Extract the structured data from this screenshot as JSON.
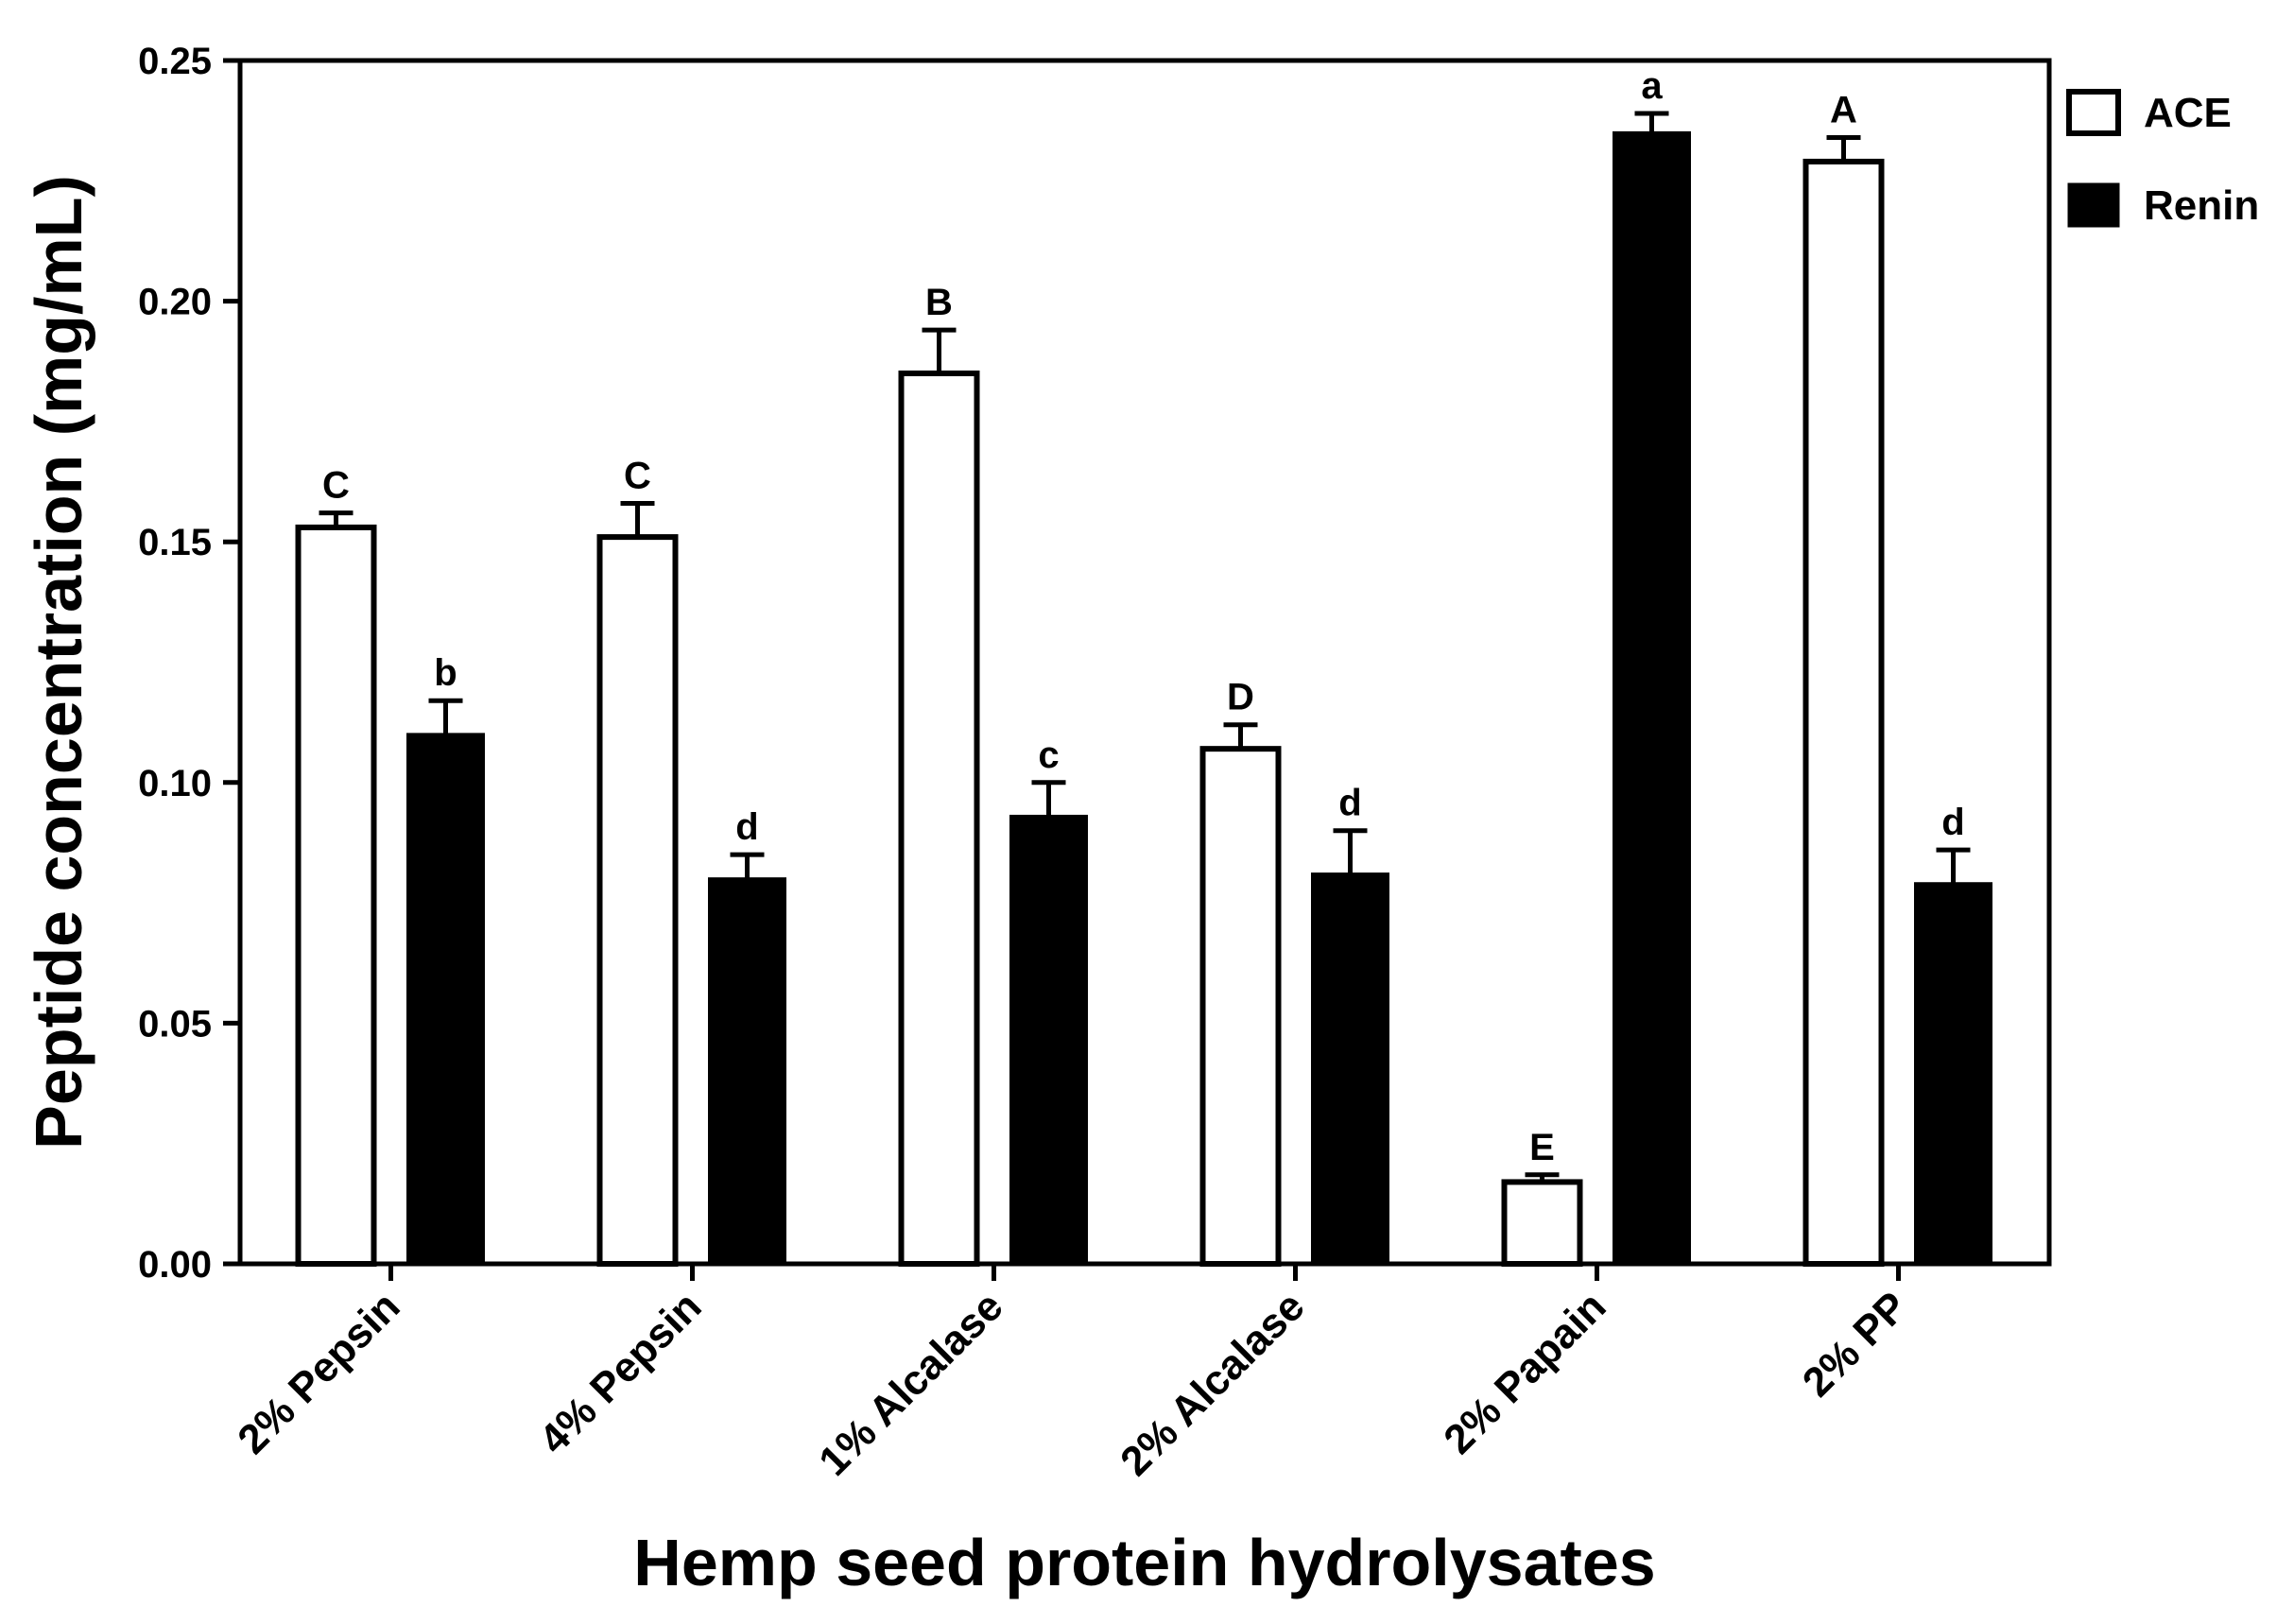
{
  "chart_data": {
    "type": "bar",
    "xlabel": "Hemp seed protein hydrolysates",
    "ylabel": "Peptide concentration (mg/mL)",
    "ylim": [
      0,
      0.25
    ],
    "yticks": [
      "0.00",
      "0.05",
      "0.10",
      "0.15",
      "0.20",
      "0.25"
    ],
    "ytick_values": [
      0,
      0.05,
      0.1,
      0.15,
      0.2,
      0.25
    ],
    "categories": [
      "2% Pepsin",
      "4% Pepsin",
      "1% Alcalase",
      "2% Alcalase",
      "2% Papain",
      "2% PP"
    ],
    "series": [
      {
        "name": "ACE",
        "color": "#ffffff",
        "values": [
          0.153,
          0.151,
          0.185,
          0.107,
          0.017,
          0.229
        ],
        "errors": [
          0.003,
          0.007,
          0.009,
          0.005,
          0.0015,
          0.005
        ],
        "labels": [
          "C",
          "C",
          "B",
          "D",
          "E",
          "A"
        ]
      },
      {
        "name": "Renin",
        "color": "#000000",
        "values": [
          0.11,
          0.08,
          0.093,
          0.081,
          0.235,
          0.079
        ],
        "errors": [
          0.007,
          0.005,
          0.007,
          0.009,
          0.004,
          0.007
        ],
        "labels": [
          "b",
          "d",
          "c",
          "d",
          "a",
          "d"
        ]
      }
    ],
    "legend": "top-right",
    "grid": false
  }
}
